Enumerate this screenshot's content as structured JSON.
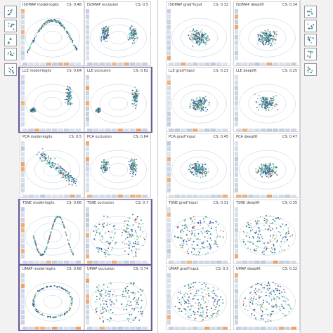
{
  "colors": {
    "frame": "#6c5b9e",
    "point_a": "#3b5998",
    "point_b": "#5fbfa6",
    "highlight": "#e2873f",
    "contour": "#8fa6c8"
  },
  "thumbnail_icons": [
    "scatter-thumb-icon",
    "histogram-thumb-icon",
    "violin-thumb-icon",
    "scatter-thumb-icon",
    "density-thumb-icon"
  ],
  "right_thumbnail_icons": [
    "scatter-thumb-icon",
    "histogram-thumb-icon",
    "violin-thumb-icon",
    "scatter-thumb-icon",
    "density-thumb-icon"
  ],
  "panels": [
    {
      "label": "ISOMAP model-logits",
      "cs": "CS: 0.48"
    },
    {
      "label": "ISOMAP occlusion",
      "cs": "CS: 0.5"
    },
    {
      "label": "ISOMAP grad*input",
      "cs": "CS: 0.32"
    },
    {
      "label": "ISOMAP deeplift",
      "cs": "CS: 0.34"
    },
    {
      "label": "LLE model-logits",
      "cs": "CS: 0.64"
    },
    {
      "label": "LLE occlusion",
      "cs": "CS: 0.62"
    },
    {
      "label": "LLE grad*input",
      "cs": "CS: 0.23"
    },
    {
      "label": "LLE deeplift",
      "cs": "CS: 0.25"
    },
    {
      "label": "PCA model-logits",
      "cs": "CS: 0.5"
    },
    {
      "label": "PCA occlusion",
      "cs": "CS: 0.64"
    },
    {
      "label": "PCA grad*input",
      "cs": "CS: 0.45"
    },
    {
      "label": "PCA deeplift",
      "cs": "CS: 0.47"
    },
    {
      "label": "TSNE model-logits",
      "cs": "CS: 0.66"
    },
    {
      "label": "TSNE occlusion",
      "cs": "CS: 0.7"
    },
    {
      "label": "TSNE grad*input",
      "cs": "CS: 0.31"
    },
    {
      "label": "TSNE deeplift",
      "cs": "CS: 0.35"
    },
    {
      "label": "UMAP model-logits",
      "cs": "CS: 0.68"
    },
    {
      "label": "UMAP occlusion",
      "cs": "CS: 0.74"
    },
    {
      "label": "UMAP grad*input",
      "cs": "CS: 0.3"
    },
    {
      "label": "UMAP deeplift",
      "cs": "CS: 0.32"
    }
  ]
}
